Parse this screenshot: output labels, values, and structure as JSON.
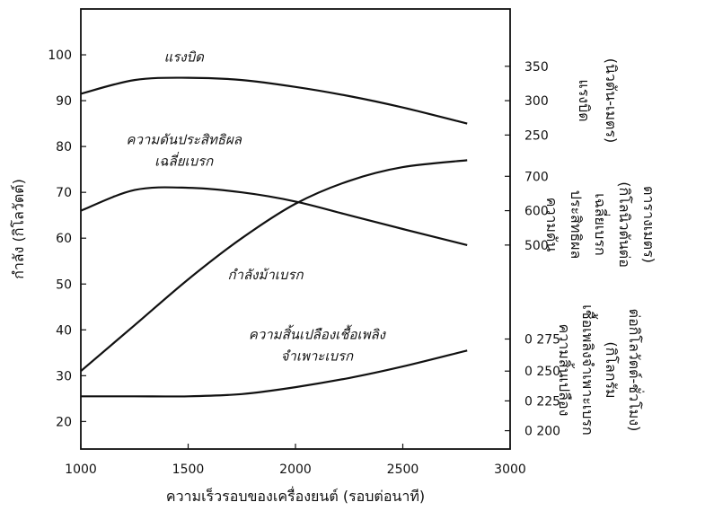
{
  "chart_data": {
    "type": "line",
    "xlabel": "ความเร็วรอบของเครื่องยนต์ (รอบต่อนาที)",
    "ylabel": "กำลัง (กิโลวัตต์)",
    "xlim": [
      1000,
      3000
    ],
    "ylim": [
      14,
      110
    ],
    "x_ticks": [
      "1000",
      "1500",
      "2000",
      "2500",
      "3000"
    ],
    "y_ticks": [
      "20",
      "30",
      "40",
      "50",
      "60",
      "70",
      "80",
      "90",
      "100"
    ],
    "right_axes": [
      {
        "label_lines": [
          "แรงบิด",
          "(นิวตัน-เมตร)"
        ],
        "ticks": [
          {
            "label": "350",
            "left_value": 97.5
          },
          {
            "label": "300",
            "left_value": 90
          },
          {
            "label": "250",
            "left_value": 82.5
          }
        ]
      },
      {
        "label_lines": [
          "ความดัน",
          "ประสิทธิผล",
          "เฉลี่ยเบรก",
          "(กิโลนิวตันต่อ",
          "ตารางเมตร)"
        ],
        "ticks": [
          {
            "label": "700",
            "left_value": 73.5
          },
          {
            "label": "600",
            "left_value": 66
          },
          {
            "label": "500",
            "left_value": 58.5
          }
        ]
      },
      {
        "label_lines": [
          "ความสิ้นเปลือง",
          "เชื้อเพลิงจำเพาะเบรก",
          "(กิโลกรัม",
          "ต่อกิโลวัตต์-ชั่วโมง)"
        ],
        "ticks": [
          {
            "label": "0 275",
            "left_value": 38
          },
          {
            "label": "0 250",
            "left_value": 31
          },
          {
            "label": "0 225",
            "left_value": 24.5
          },
          {
            "label": "0 200",
            "left_value": 18
          }
        ]
      }
    ],
    "series": [
      {
        "name": "แรงบิด",
        "x": [
          1000,
          1250,
          1500,
          1750,
          2000,
          2250,
          2500,
          2800
        ],
        "y": [
          91.5,
          94.5,
          95,
          94.5,
          93,
          91,
          88.5,
          85
        ]
      },
      {
        "name": "ความดันประสิทธิผล เฉลี่ยเบรก",
        "x": [
          1000,
          1250,
          1500,
          1750,
          2000,
          2250,
          2500,
          2800
        ],
        "y": [
          66,
          70.5,
          71,
          70,
          68,
          65,
          62,
          58.5
        ]
      },
      {
        "name": "กำลังม้าเบรก",
        "x": [
          1000,
          1250,
          1500,
          1750,
          2000,
          2250,
          2500,
          2800
        ],
        "y": [
          31,
          41,
          51,
          60,
          67.5,
          72.5,
          75.5,
          77
        ]
      },
      {
        "name": "ความสิ้นเปลืองเชื้อเพลิง จำเพาะเบรก",
        "x": [
          1000,
          1250,
          1500,
          1750,
          2000,
          2250,
          2500,
          2800
        ],
        "y": [
          25.5,
          25.5,
          25.5,
          26,
          27.5,
          29.5,
          32,
          35.5
        ]
      }
    ],
    "annotations": [
      {
        "lines": [
          "แรงบิด"
        ],
        "at": [
          1480,
          98.5
        ]
      },
      {
        "lines": [
          "ความดันประสิทธิผล",
          "เฉลี่ยเบรก"
        ],
        "at": [
          1480,
          80.5
        ]
      },
      {
        "lines": [
          "กำลังม้าเบรก"
        ],
        "at": [
          1860,
          51
        ]
      },
      {
        "lines": [
          "ความสิ้นเปลืองเชื้อเพลิง",
          "จำเพาะเบรก"
        ],
        "at": [
          2100,
          38
        ]
      }
    ],
    "grid": false,
    "legend": "none"
  }
}
